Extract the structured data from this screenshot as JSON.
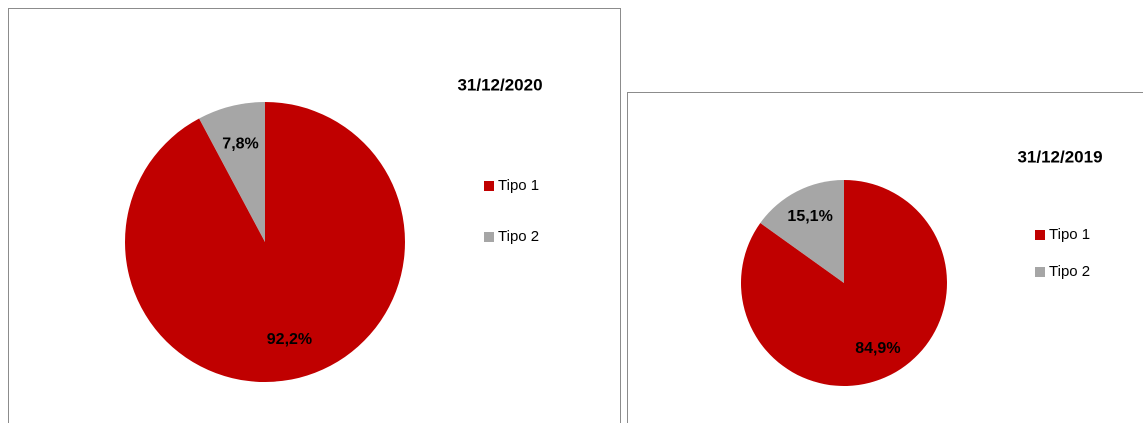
{
  "chart_data": [
    {
      "type": "pie",
      "title": "31/12/2020",
      "categories": [
        "Tipo 1",
        "Tipo 2"
      ],
      "values": [
        92.2,
        7.8
      ],
      "value_labels": [
        "92,2%",
        "7,8%"
      ],
      "colors": [
        "#c00000",
        "#a6a6a6"
      ]
    },
    {
      "type": "pie",
      "title": "31/12/2019",
      "categories": [
        "Tipo 1",
        "Tipo 2"
      ],
      "values": [
        84.9,
        15.1
      ],
      "value_labels": [
        "84,9%",
        "15,1%"
      ],
      "colors": [
        "#c00000",
        "#a6a6a6"
      ]
    }
  ]
}
